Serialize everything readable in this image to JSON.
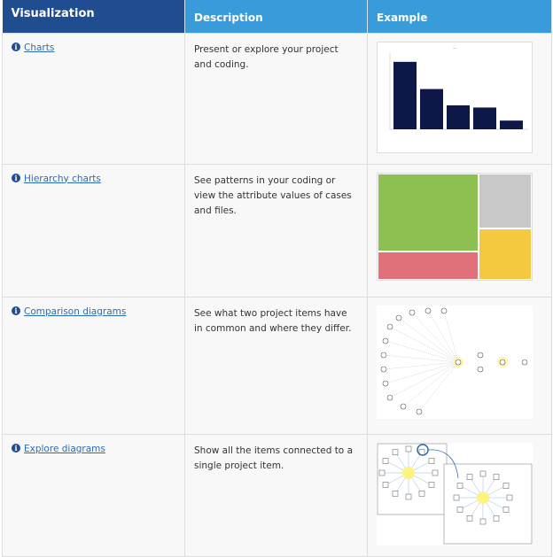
{
  "table": {
    "headers": [
      "Visualization",
      "Description",
      "Example"
    ],
    "rows": [
      {
        "link": "Charts",
        "description": "Present or explore your project and coding.",
        "example": "bar-chart-thumbnail"
      },
      {
        "link": "Hierarchy charts",
        "description": "See patterns in your coding or view the attribute values of cases and files.",
        "example": "treemap-thumbnail"
      },
      {
        "link": "Comparison diagrams",
        "description": "See what two project items have in common and where they differ.",
        "example": "comparison-diagram-thumbnail"
      },
      {
        "link": "Explore diagrams",
        "description": "Show all the items connected to a single project item.",
        "example": "explore-diagram-thumbnail"
      }
    ]
  },
  "colors": {
    "header_primary": "#1f4d8f",
    "header_secondary": "#3a9bdb",
    "link": "#2c6cb5",
    "bar": "#0e1848"
  },
  "chart_thumbnail": {
    "type": "bar",
    "values": [
      62,
      37,
      22,
      20,
      8
    ]
  }
}
